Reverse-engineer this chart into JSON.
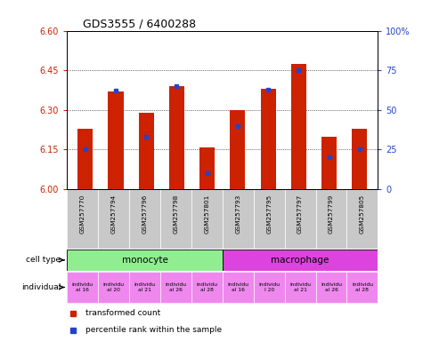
{
  "title": "GDS3555 / 6400288",
  "samples": [
    "GSM257770",
    "GSM257794",
    "GSM257796",
    "GSM257798",
    "GSM257801",
    "GSM257793",
    "GSM257795",
    "GSM257797",
    "GSM257799",
    "GSM257805"
  ],
  "bar_values": [
    6.23,
    6.37,
    6.29,
    6.39,
    6.16,
    6.3,
    6.38,
    6.475,
    6.2,
    6.23
  ],
  "percentile_values": [
    25,
    62,
    33,
    65,
    10,
    40,
    63,
    75,
    20,
    25
  ],
  "ylim": [
    6.0,
    6.6
  ],
  "yticks_left": [
    6.0,
    6.15,
    6.3,
    6.45,
    6.6
  ],
  "yticks_right": [
    0,
    25,
    50,
    75,
    100
  ],
  "bar_color": "#cc2200",
  "dot_color": "#2244cc",
  "cell_types": [
    {
      "label": "monocyte",
      "start": 0,
      "end": 5,
      "color": "#90ee90"
    },
    {
      "label": "macrophage",
      "start": 5,
      "end": 10,
      "color": "#dd44dd"
    }
  ],
  "individuals": [
    {
      "label": "individu\nal 16",
      "index": 0,
      "color": "#ee88ee"
    },
    {
      "label": "individu\nal 20",
      "index": 1,
      "color": "#ee88ee"
    },
    {
      "label": "individu\nal 21",
      "index": 2,
      "color": "#ee88ee"
    },
    {
      "label": "individu\nal 26",
      "index": 3,
      "color": "#ee88ee"
    },
    {
      "label": "individu\nal 28",
      "index": 4,
      "color": "#ee88ee"
    },
    {
      "label": "individu\nal 16",
      "index": 5,
      "color": "#ee88ee"
    },
    {
      "label": "individu\nl 20",
      "index": 6,
      "color": "#ee88ee"
    },
    {
      "label": "individu\nal 21",
      "index": 7,
      "color": "#ee88ee"
    },
    {
      "label": "individu\nal 26",
      "index": 8,
      "color": "#ee88ee"
    },
    {
      "label": "individu\nal 28",
      "index": 9,
      "color": "#ee88ee"
    }
  ],
  "bar_width": 0.5,
  "legend_red": "transformed count",
  "legend_blue": "percentile rank within the sample",
  "bg_color": "#ffffff",
  "tick_color_left": "#cc2200",
  "tick_color_right": "#2244cc",
  "sample_bg_color": "#c8c8c8"
}
